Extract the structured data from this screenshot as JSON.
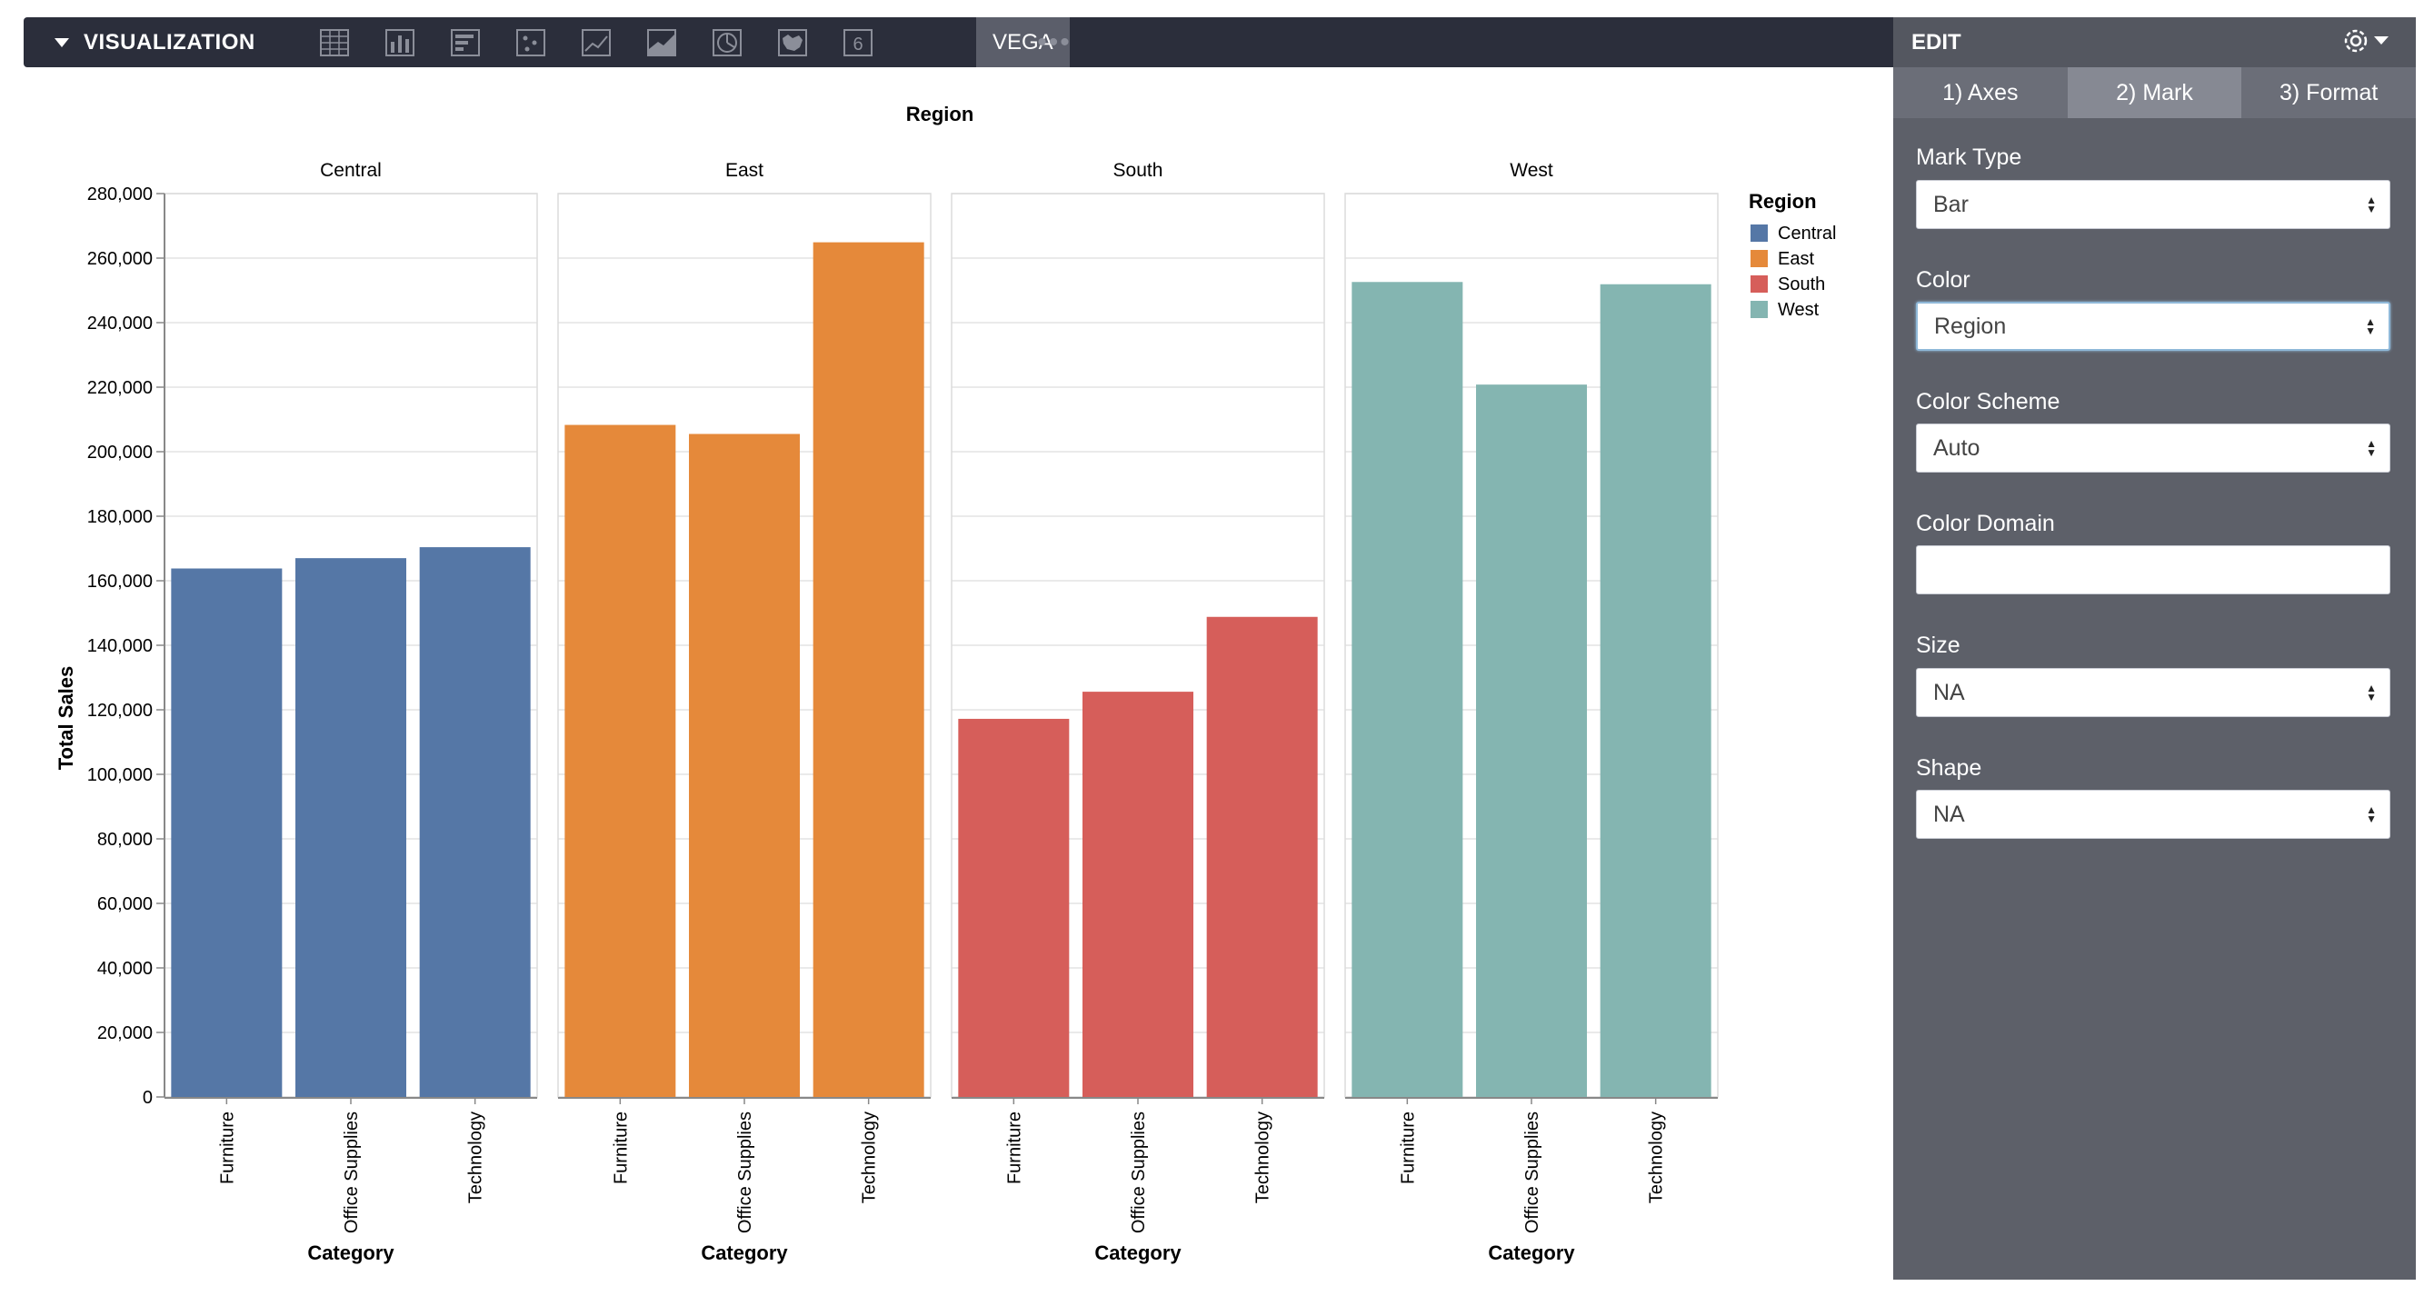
{
  "toolbar": {
    "title": "VISUALIZATION",
    "tools": [
      "table-view-icon",
      "bar-chart-icon",
      "horizontal-bar-icon",
      "scatter-icon",
      "line-chart-icon",
      "area-chart-icon",
      "pie-chart-icon",
      "map-icon",
      "number-icon"
    ],
    "number_glyph": "6",
    "vega_label": "VEGA",
    "more_label": "•••"
  },
  "panel": {
    "title": "EDIT",
    "tabs": [
      "1) Axes",
      "2) Mark",
      "3) Format"
    ],
    "active_tab": 1,
    "fields": {
      "mark_type": {
        "label": "Mark Type",
        "value": "Bar"
      },
      "color": {
        "label": "Color",
        "value": "Region"
      },
      "color_scheme": {
        "label": "Color Scheme",
        "value": "Auto"
      },
      "color_domain": {
        "label": "Color Domain",
        "value": ""
      },
      "size": {
        "label": "Size",
        "value": "NA"
      },
      "shape": {
        "label": "Shape",
        "value": "NA"
      }
    }
  },
  "chart_data": {
    "type": "bar",
    "title": "Region",
    "ylabel": "Total Sales",
    "xlabel": "Category",
    "ylim": [
      0,
      280000
    ],
    "yticks": [
      "0",
      "20,000",
      "40,000",
      "60,000",
      "80,000",
      "100,000",
      "120,000",
      "140,000",
      "160,000",
      "180,000",
      "200,000",
      "220,000",
      "240,000",
      "260,000",
      "280,000"
    ],
    "categories": [
      "Furniture",
      "Office Supplies",
      "Technology"
    ],
    "legend": {
      "title": "Region",
      "position": "right"
    },
    "grid": true,
    "facets": [
      {
        "name": "Central",
        "color": "#5577a6",
        "values": [
          163800,
          167000,
          170400
        ]
      },
      {
        "name": "East",
        "color": "#e5893a",
        "values": [
          208300,
          205500,
          264900
        ]
      },
      {
        "name": "South",
        "color": "#d65e5a",
        "values": [
          117200,
          125600,
          148800
        ]
      },
      {
        "name": "West",
        "color": "#84b5b1",
        "values": [
          252600,
          220800,
          251900
        ]
      }
    ]
  }
}
